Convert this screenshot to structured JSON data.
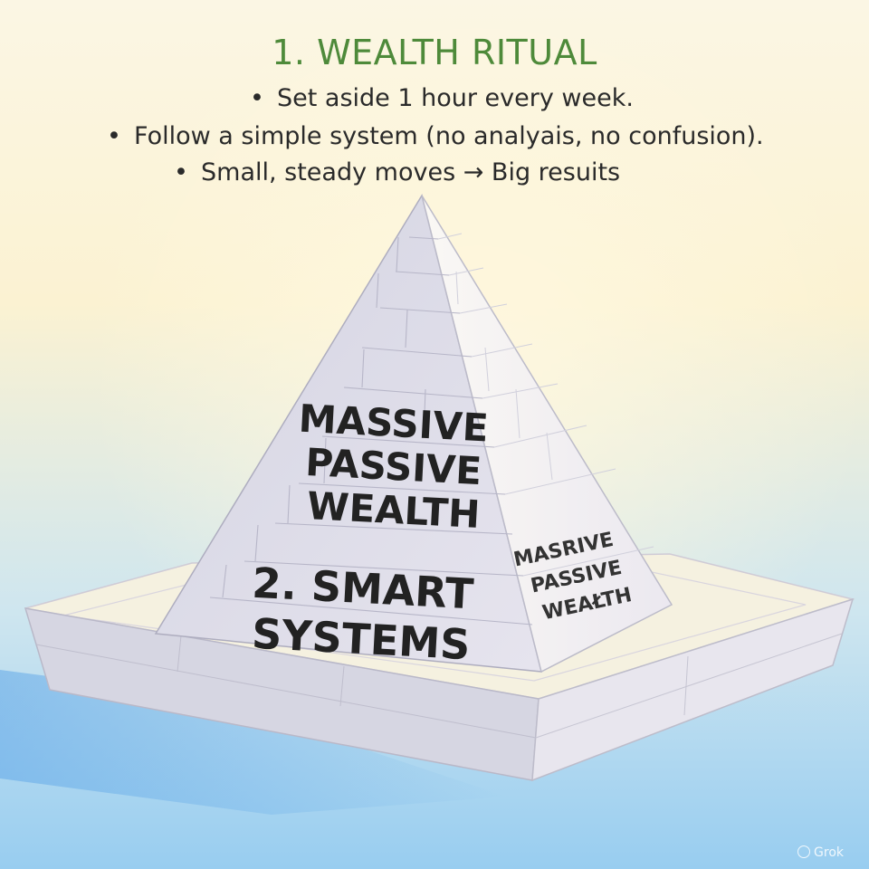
{
  "header": {
    "title": "1. WEALTH RITUAL",
    "bullets": [
      "Set aside 1 hour every week.",
      "Follow a simple system (no analyais, no confusion).",
      "Small, steady moves → Big resuits"
    ]
  },
  "pyramid": {
    "front_top_lines": [
      "MASSIVE",
      "PASSIVE",
      "WEALTH"
    ],
    "front_bottom_lines": [
      "2. SMART",
      "SYSTEMS"
    ],
    "side_lines": [
      "MASRIVE",
      "PASSIVE",
      "WEAŁTH"
    ]
  },
  "watermark": "Grok",
  "colors": {
    "title": "#4e8a3a",
    "text": "#2a2a2a",
    "bg_top": "#fbf4da",
    "bg_bottom": "#9fcff0",
    "pyramid_front": "#dedde8",
    "pyramid_side": "#f3f1f6",
    "base_top": "#f6f2e2",
    "base_side": "#d8d8e2"
  }
}
